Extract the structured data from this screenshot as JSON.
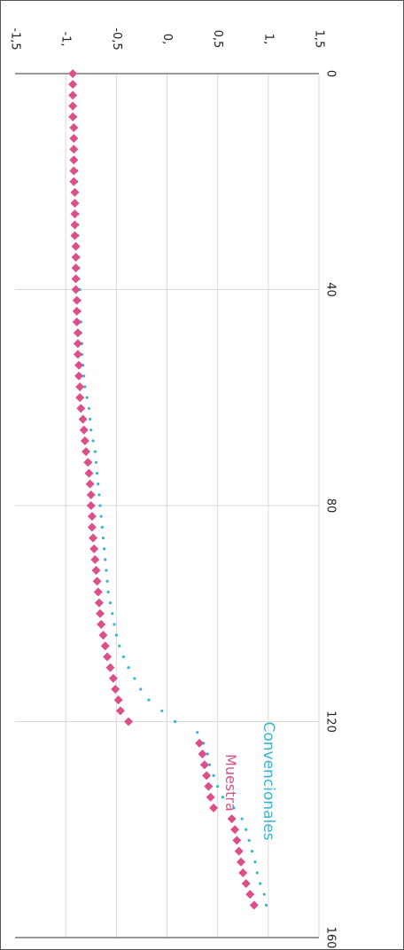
{
  "chart_data": {
    "type": "scatter",
    "title": "",
    "xlabel": "",
    "ylabel": "",
    "xlim": [
      0,
      160
    ],
    "ylim": [
      -1.5,
      1.5
    ],
    "x_ticks": [
      "0",
      "40",
      "80",
      "120",
      "160"
    ],
    "y_ticks": [
      "-1,5",
      "-1,",
      "-0,5",
      "0,",
      "0,5",
      "1,",
      "1,5"
    ],
    "grid": true,
    "orientation": "rotated-90-clockwise",
    "colors": {
      "Convencionales": "#37b6cf",
      "Muestra": "#dd4f8a",
      "grid": "#d9d9d9",
      "axis": "#333333"
    },
    "series": [
      {
        "name": "Convencionales",
        "marker": "dot",
        "x": [
          0,
          2,
          4,
          6,
          8,
          10,
          12,
          14,
          16,
          18,
          20,
          22,
          24,
          26,
          28,
          30,
          32,
          34,
          36,
          38,
          40,
          42,
          44,
          46,
          48,
          50,
          52,
          54,
          56,
          58,
          60,
          62,
          64,
          66,
          68,
          70,
          72,
          74,
          76,
          78,
          80,
          82,
          84,
          86,
          88,
          90,
          92,
          94,
          96,
          98,
          100,
          102,
          104,
          106,
          108,
          110,
          112,
          114,
          116,
          118,
          120,
          122,
          124,
          126,
          128,
          130,
          132,
          134,
          136,
          138,
          140,
          142,
          144,
          146,
          148,
          150,
          152,
          154
        ],
        "y": [
          -0.91,
          -0.91,
          -0.91,
          -0.91,
          -0.9,
          -0.9,
          -0.9,
          -0.9,
          -0.9,
          -0.89,
          -0.89,
          -0.89,
          -0.89,
          -0.88,
          -0.88,
          -0.88,
          -0.88,
          -0.87,
          -0.87,
          -0.87,
          -0.86,
          -0.86,
          -0.86,
          -0.85,
          -0.85,
          -0.84,
          -0.84,
          -0.83,
          -0.82,
          -0.81,
          -0.79,
          -0.77,
          -0.76,
          -0.75,
          -0.73,
          -0.71,
          -0.7,
          -0.69,
          -0.68,
          -0.67,
          -0.66,
          -0.65,
          -0.64,
          -0.63,
          -0.62,
          -0.61,
          -0.6,
          -0.59,
          -0.58,
          -0.56,
          -0.54,
          -0.52,
          -0.5,
          -0.47,
          -0.43,
          -0.38,
          -0.32,
          -0.26,
          -0.18,
          -0.05,
          0.08,
          0.3,
          0.36,
          0.4,
          0.42,
          0.46,
          0.5,
          0.55,
          0.66,
          0.74,
          0.78,
          0.81,
          0.84,
          0.87,
          0.89,
          0.92,
          0.96,
          0.98
        ]
      },
      {
        "name": "Muestra",
        "marker": "diamond",
        "x": [
          0,
          2,
          4,
          6,
          8,
          10,
          12,
          14,
          16,
          18,
          20,
          22,
          24,
          26,
          28,
          30,
          32,
          34,
          36,
          38,
          40,
          42,
          44,
          46,
          48,
          50,
          52,
          54,
          56,
          58,
          60,
          62,
          64,
          66,
          68,
          70,
          72,
          74,
          76,
          78,
          80,
          82,
          84,
          86,
          88,
          90,
          92,
          94,
          96,
          98,
          100,
          102,
          104,
          106,
          108,
          110,
          112,
          114,
          116,
          118,
          120,
          124,
          126,
          128,
          130,
          132,
          134,
          136,
          138,
          140,
          142,
          144,
          146,
          148,
          150,
          152,
          154
        ],
        "y": [
          -0.93,
          -0.93,
          -0.93,
          -0.93,
          -0.93,
          -0.92,
          -0.92,
          -0.92,
          -0.92,
          -0.92,
          -0.92,
          -0.91,
          -0.91,
          -0.91,
          -0.91,
          -0.91,
          -0.9,
          -0.9,
          -0.9,
          -0.9,
          -0.9,
          -0.89,
          -0.89,
          -0.89,
          -0.88,
          -0.88,
          -0.88,
          -0.87,
          -0.87,
          -0.86,
          -0.86,
          -0.85,
          -0.83,
          -0.82,
          -0.81,
          -0.8,
          -0.78,
          -0.77,
          -0.76,
          -0.75,
          -0.75,
          -0.74,
          -0.74,
          -0.73,
          -0.72,
          -0.71,
          -0.7,
          -0.69,
          -0.68,
          -0.67,
          -0.66,
          -0.65,
          -0.63,
          -0.61,
          -0.59,
          -0.56,
          -0.53,
          -0.51,
          -0.48,
          -0.46,
          -0.38,
          0.32,
          0.35,
          0.37,
          0.39,
          0.41,
          0.43,
          0.46,
          0.64,
          0.67,
          0.69,
          0.71,
          0.73,
          0.75,
          0.78,
          0.82,
          0.86
        ]
      }
    ],
    "annotations": [
      {
        "text": "Convencionales",
        "series": "Convencionales"
      },
      {
        "text": "Muestra",
        "series": "Muestra"
      }
    ]
  }
}
